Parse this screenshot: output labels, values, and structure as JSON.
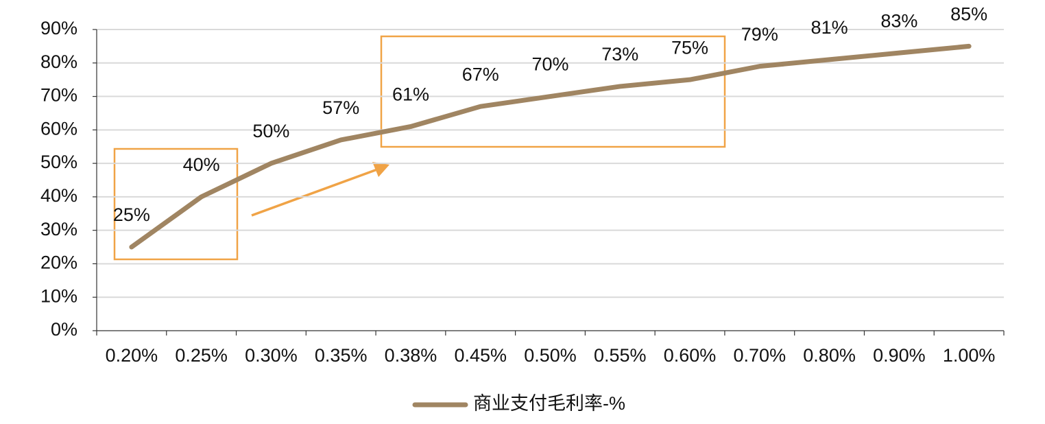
{
  "chart_data": {
    "type": "line",
    "categories": [
      "0.20%",
      "0.25%",
      "0.30%",
      "0.35%",
      "0.38%",
      "0.45%",
      "0.50%",
      "0.55%",
      "0.60%",
      "0.70%",
      "0.80%",
      "0.90%",
      "1.00%"
    ],
    "series": [
      {
        "name": "商业支付毛利率-%",
        "color": "#a08562",
        "values": [
          25,
          40,
          50,
          57,
          61,
          67,
          70,
          73,
          75,
          79,
          81,
          83,
          85
        ],
        "value_labels": [
          "25%",
          "40%",
          "50%",
          "57%",
          "61%",
          "67%",
          "70%",
          "73%",
          "75%",
          "79%",
          "81%",
          "83%",
          "85%"
        ]
      }
    ],
    "ylim": [
      0,
      90
    ],
    "yticks": [
      {
        "value": 0,
        "label": "0%"
      },
      {
        "value": 10,
        "label": "10%"
      },
      {
        "value": 20,
        "label": "20%"
      },
      {
        "value": 30,
        "label": "30%"
      },
      {
        "value": 40,
        "label": "40%"
      },
      {
        "value": 50,
        "label": "50%"
      },
      {
        "value": 60,
        "label": "60%"
      },
      {
        "value": 70,
        "label": "70%"
      },
      {
        "value": 80,
        "label": "80%"
      },
      {
        "value": 90,
        "label": "90%"
      }
    ],
    "grid": true,
    "legend": "bottom"
  }
}
